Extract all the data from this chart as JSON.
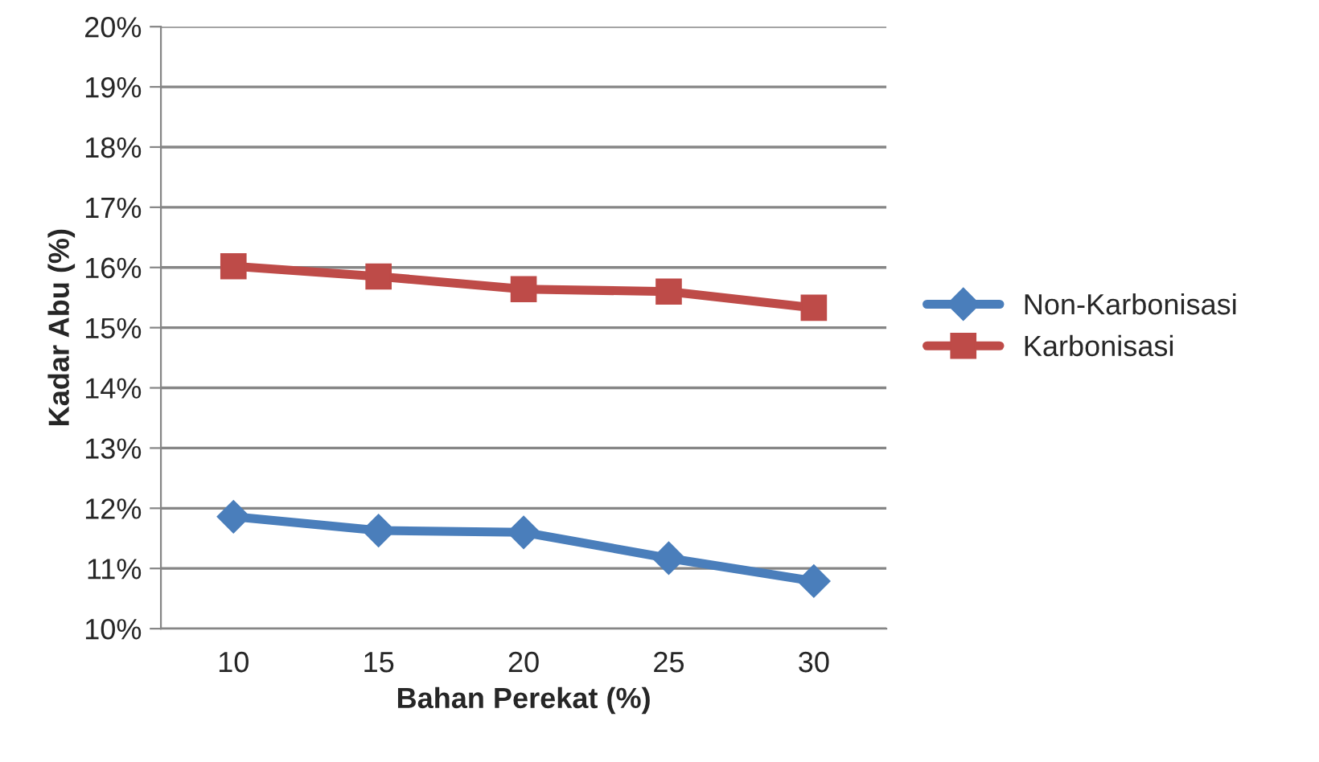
{
  "chart_data": {
    "type": "line",
    "xlabel": "Bahan Perekat (%)",
    "ylabel": "Kadar Abu (%)",
    "categories": [
      "10",
      "15",
      "20",
      "25",
      "30"
    ],
    "series": [
      {
        "name": "Non-Karbonisasi",
        "color": "#4a7ebb",
        "marker": "diamond",
        "values": [
          11.86,
          11.63,
          11.6,
          11.17,
          10.79
        ]
      },
      {
        "name": "Karbonisasi",
        "color": "#be4b48",
        "marker": "square",
        "values": [
          16.02,
          15.85,
          15.64,
          15.6,
          15.33
        ]
      }
    ],
    "ylim": [
      10,
      20
    ],
    "yticks": [
      {
        "value": 10,
        "label": "10%"
      },
      {
        "value": 11,
        "label": "11%"
      },
      {
        "value": 12,
        "label": "12%"
      },
      {
        "value": 13,
        "label": "13%"
      },
      {
        "value": 14,
        "label": "14%"
      },
      {
        "value": 15,
        "label": "15%"
      },
      {
        "value": 16,
        "label": "16%"
      },
      {
        "value": 17,
        "label": "17%"
      },
      {
        "value": 18,
        "label": "18%"
      },
      {
        "value": 19,
        "label": "19%"
      },
      {
        "value": 20,
        "label": "20%"
      }
    ],
    "grid": "y",
    "legend": "right",
    "line_style": "solid"
  }
}
